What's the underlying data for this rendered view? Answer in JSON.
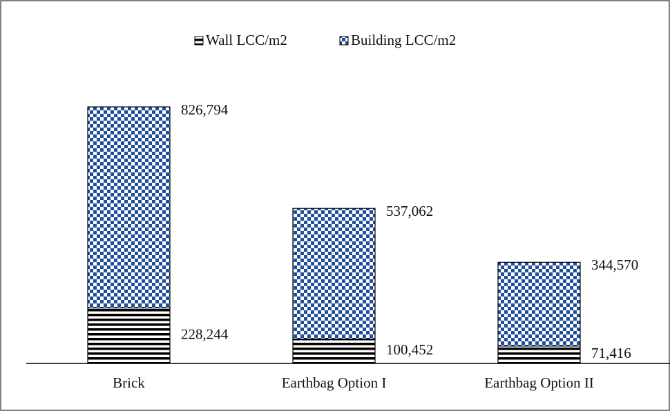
{
  "chart_data": {
    "type": "stacked_bar",
    "categories": [
      "Brick",
      "Earthbag Option I",
      "Earthbag Option II"
    ],
    "series": [
      {
        "name": "Wall LCC/m2",
        "color": "#000000",
        "values": [
          228244,
          100452,
          71416
        ],
        "value_labels": [
          "228,244",
          "100,452",
          "71,416"
        ]
      },
      {
        "name": "Building LCC/m2",
        "color": "#1f4e9c",
        "values": [
          826794,
          537062,
          344570
        ],
        "value_labels": [
          "826,794",
          "537,062",
          "344,570"
        ]
      }
    ],
    "legend": "top"
  }
}
